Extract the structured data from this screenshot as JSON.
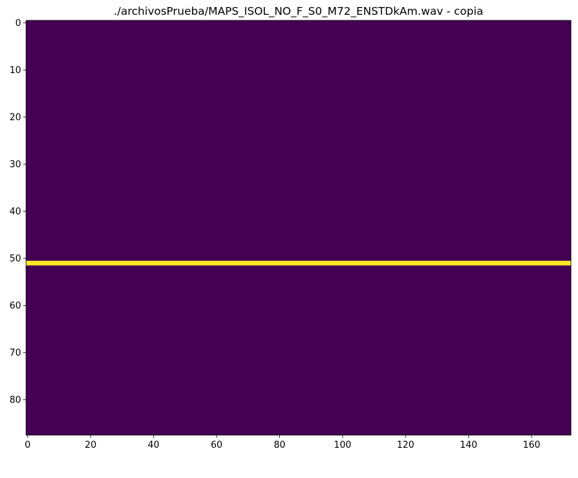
{
  "chart_data": {
    "type": "heatmap",
    "title": "./archivosPrueba/MAPS_ISOL_NO_F_S0_M72_ENSTDkAm.wav - copia",
    "xlabel": "",
    "ylabel": "",
    "n_cols": 173,
    "n_rows": 88,
    "xlim": [
      -0.5,
      172.5
    ],
    "ylim": [
      87.5,
      -0.5
    ],
    "x_ticks": [
      0,
      20,
      40,
      60,
      80,
      100,
      120,
      140,
      160
    ],
    "y_ticks": [
      0,
      10,
      20,
      30,
      40,
      50,
      60,
      70,
      80
    ],
    "background_value": 0,
    "active_rows": [
      {
        "row": 51,
        "value": 1,
        "col_start": 0,
        "col_end": 172
      }
    ],
    "colormap": "viridis",
    "color_low": "#440154",
    "color_high": "#fde725",
    "grid": false
  }
}
